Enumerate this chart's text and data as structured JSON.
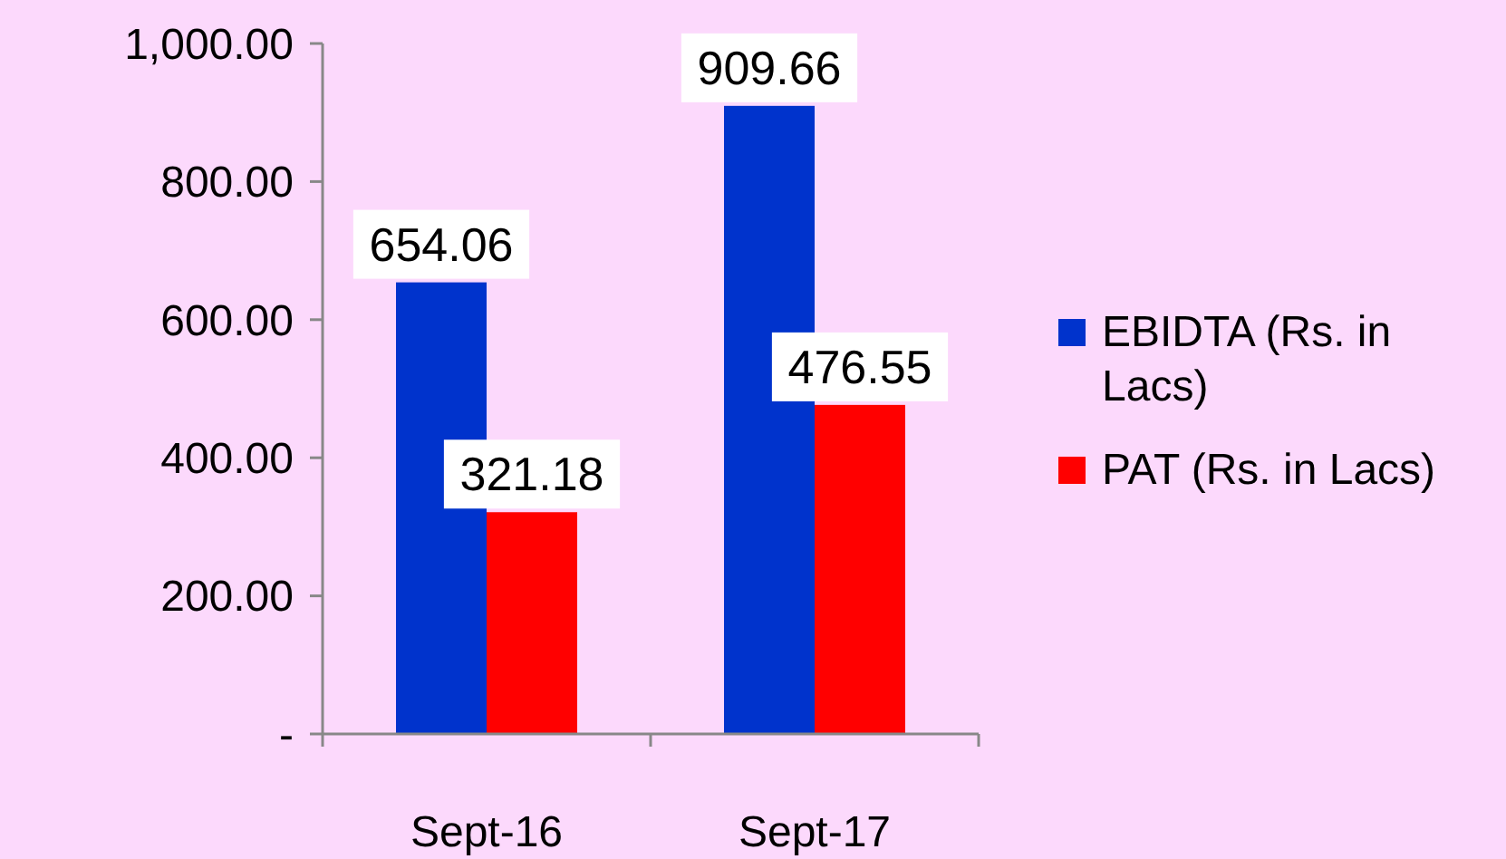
{
  "chart_data": {
    "type": "bar",
    "categories": [
      "Sept-16",
      "Sept-17"
    ],
    "series": [
      {
        "name": "EBIDTA (Rs. in Lacs)",
        "color": "#0033cc",
        "values": [
          654.06,
          909.66
        ]
      },
      {
        "name": "PAT (Rs. in Lacs)",
        "color": "#ff0000",
        "values": [
          321.18,
          476.55
        ]
      }
    ],
    "ylim": [
      0,
      1000
    ],
    "yticks": [
      {
        "value": 0,
        "label": "-"
      },
      {
        "value": 200,
        "label": "200.00"
      },
      {
        "value": 400,
        "label": "400.00"
      },
      {
        "value": 600,
        "label": "600.00"
      },
      {
        "value": 800,
        "label": "800.00"
      },
      {
        "value": 1000,
        "label": "1,000.00"
      }
    ],
    "data_labels": true,
    "legend": "right",
    "grid": false
  }
}
